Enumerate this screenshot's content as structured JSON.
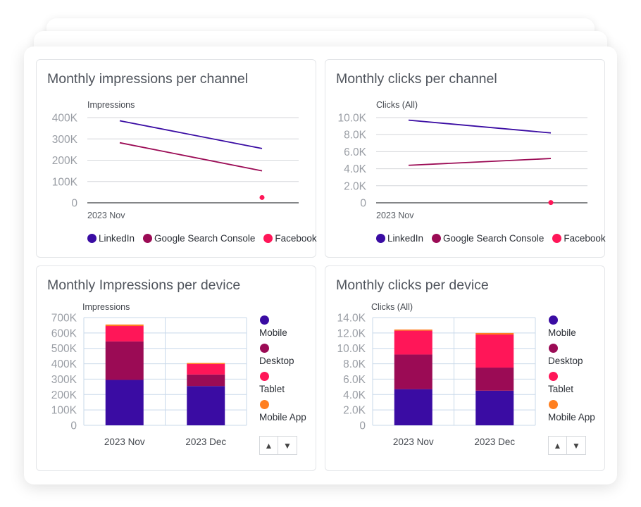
{
  "legend_colors": {
    "LinkedIn": "#3a0ca3",
    "Google Search Console": "#9b0b55",
    "Facebook": "#ff1658",
    "Mobile": "#3a0ca3",
    "Desktop": "#9b0b55",
    "Tablet": "#ff1658",
    "Mobile App": "#ff7f20"
  },
  "cards": [
    {
      "title": "Monthly impressions per channel",
      "legend": [
        "LinkedIn",
        "Google Search Console",
        "Facebook"
      ]
    },
    {
      "title": "Monthly clicks per channel",
      "legend": [
        "LinkedIn",
        "Google Search Console",
        "Facebook"
      ]
    },
    {
      "title": "Monthly Impressions per device",
      "legend": [
        "Mobile",
        "Desktop",
        "Tablet",
        "Mobile App"
      ],
      "pager": {
        "up": "▲",
        "down": "▼"
      }
    },
    {
      "title": "Monthly clicks per device",
      "legend": [
        "Mobile",
        "Desktop",
        "Tablet",
        "Mobile App"
      ],
      "pager": {
        "up": "▲",
        "down": "▼"
      }
    }
  ],
  "chart_data": [
    {
      "type": "line",
      "title": "Monthly impressions per channel",
      "ylabel": "Impressions",
      "xlabel": "2023 Nov",
      "ylim": [
        0,
        400000
      ],
      "yticks": [
        "400K",
        "300K",
        "200K",
        "100K",
        "0"
      ],
      "x": [
        0,
        1
      ],
      "series": [
        {
          "name": "LinkedIn",
          "values": [
            385000,
            255000
          ]
        },
        {
          "name": "Google Search Console",
          "values": [
            282000,
            150000
          ]
        },
        {
          "name": "Facebook",
          "values": [
            null,
            25000
          ]
        }
      ]
    },
    {
      "type": "line",
      "title": "Monthly clicks per channel",
      "ylabel": "Clicks (All)",
      "xlabel": "2023 Nov",
      "ylim": [
        0,
        10000
      ],
      "yticks": [
        "10.0K",
        "8.0K",
        "6.0K",
        "4.0K",
        "2.0K",
        "0"
      ],
      "x": [
        0,
        1
      ],
      "series": [
        {
          "name": "LinkedIn",
          "values": [
            9700,
            8200
          ]
        },
        {
          "name": "Google Search Console",
          "values": [
            4400,
            5200
          ]
        },
        {
          "name": "Facebook",
          "values": [
            null,
            30
          ]
        }
      ]
    },
    {
      "type": "bar",
      "stacked": true,
      "title": "Monthly Impressions per device",
      "ylabel": "Impressions",
      "ylim": [
        0,
        700000
      ],
      "yticks": [
        "700K",
        "600K",
        "500K",
        "400K",
        "300K",
        "200K",
        "100K",
        "0"
      ],
      "categories": [
        "2023 Nov",
        "2023 Dec"
      ],
      "series": [
        {
          "name": "Mobile",
          "values": [
            295000,
            255000
          ]
        },
        {
          "name": "Desktop",
          "values": [
            250000,
            75000
          ]
        },
        {
          "name": "Tablet",
          "values": [
            100000,
            68000
          ]
        },
        {
          "name": "Mobile App",
          "values": [
            10000,
            7000
          ]
        }
      ]
    },
    {
      "type": "bar",
      "stacked": true,
      "title": "Monthly clicks per device",
      "ylabel": "Clicks (All)",
      "ylim": [
        0,
        14000
      ],
      "yticks": [
        "14.0K",
        "12.0K",
        "10.0K",
        "8.0K",
        "6.0K",
        "4.0K",
        "2.0K",
        "0"
      ],
      "categories": [
        "2023 Nov",
        "2023 Dec"
      ],
      "series": [
        {
          "name": "Mobile",
          "values": [
            4700,
            4500
          ]
        },
        {
          "name": "Desktop",
          "values": [
            4500,
            3000
          ]
        },
        {
          "name": "Tablet",
          "values": [
            3100,
            4300
          ]
        },
        {
          "name": "Mobile App",
          "values": [
            150,
            200
          ]
        }
      ]
    }
  ]
}
